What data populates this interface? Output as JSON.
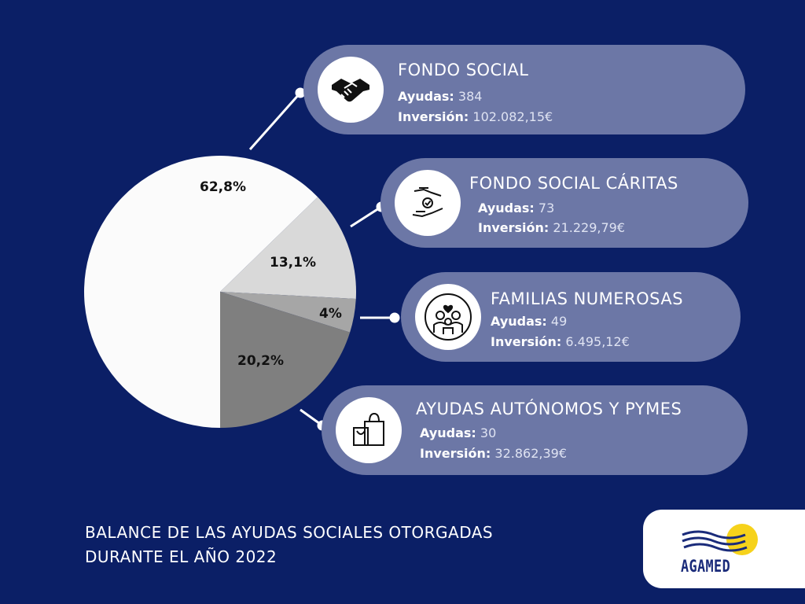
{
  "chart_data": {
    "type": "pie",
    "slices": [
      {
        "label": "62,8%",
        "value": 62.8,
        "color": "#fbfbfb"
      },
      {
        "label": "13,1%",
        "value": 13.1,
        "color": "#d9d9d9"
      },
      {
        "label": "4%",
        "value": 4.0,
        "color": "#a6a6a6"
      },
      {
        "label": "20,2%",
        "value": 20.2,
        "color": "#7f7f7f"
      }
    ]
  },
  "cards": [
    {
      "title": "FONDO SOCIAL",
      "ayudas_label": "Ayudas:",
      "ayudas_value": "384",
      "inversion_label": "Inversión:",
      "inversion_value": "102.082,15€",
      "icon": "handshake-icon"
    },
    {
      "title": "FONDO SOCIAL CÁRITAS",
      "ayudas_label": "Ayudas:",
      "ayudas_value": "73",
      "inversion_label": "Inversión:",
      "inversion_value": "21.229,79€",
      "icon": "giving-hands-icon"
    },
    {
      "title": "FAMILIAS NUMEROSAS",
      "ayudas_label": "Ayudas:",
      "ayudas_value": "49",
      "inversion_label": "Inversión:",
      "inversion_value": "6.495,12€",
      "icon": "family-icon"
    },
    {
      "title": "AYUDAS AUTÓNOMOS Y PYMES",
      "ayudas_label": "Ayudas:",
      "ayudas_value": "30",
      "inversion_label": "Inversión:",
      "inversion_value": "32.862,39€",
      "icon": "shopping-bags-icon"
    }
  ],
  "footer": {
    "line1": "BALANCE DE LAS AYUDAS SOCIALES OTORGADAS",
    "line2": "DURANTE EL AÑO 2022"
  },
  "logo": {
    "text": "AGAMED",
    "icon": "sun-waves-icon"
  },
  "colors": {
    "background": "#0b1f66",
    "card": "#6c77a6",
    "sun": "#f6d21b"
  }
}
